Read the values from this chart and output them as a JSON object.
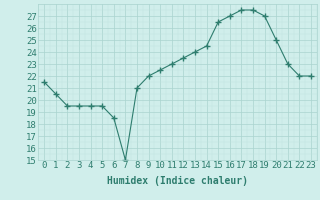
{
  "x": [
    0,
    1,
    2,
    3,
    4,
    5,
    6,
    7,
    8,
    9,
    10,
    11,
    12,
    13,
    14,
    15,
    16,
    17,
    18,
    19,
    20,
    21,
    22,
    23
  ],
  "y": [
    21.5,
    20.5,
    19.5,
    19.5,
    19.5,
    19.5,
    18.5,
    15.0,
    21.0,
    22.0,
    22.5,
    23.0,
    23.5,
    24.0,
    24.5,
    26.5,
    27.0,
    27.5,
    27.5,
    27.0,
    25.0,
    23.0,
    22.0,
    22.0
  ],
  "title": "",
  "xlabel": "Humidex (Indice chaleur)",
  "ylabel": "",
  "xlim": [
    -0.5,
    23.5
  ],
  "ylim": [
    15,
    28
  ],
  "yticks": [
    15,
    16,
    17,
    18,
    19,
    20,
    21,
    22,
    23,
    24,
    25,
    26,
    27
  ],
  "xticks": [
    0,
    1,
    2,
    3,
    4,
    5,
    6,
    7,
    8,
    9,
    10,
    11,
    12,
    13,
    14,
    15,
    16,
    17,
    18,
    19,
    20,
    21,
    22,
    23
  ],
  "line_color": "#2e7d6e",
  "marker": "+",
  "marker_size": 4,
  "bg_color": "#d0eeeb",
  "grid_major_color": "#aad4cf",
  "grid_minor_color": "#c0e4e0",
  "xlabel_fontsize": 7,
  "tick_fontsize": 6.5
}
